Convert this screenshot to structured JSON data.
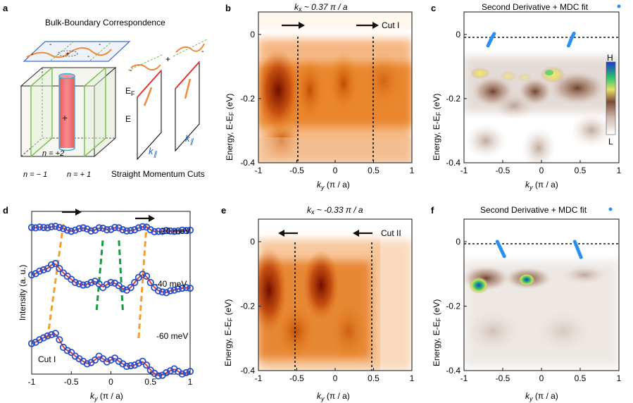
{
  "panels": {
    "a": {
      "label": "a",
      "title": "Bulk-Boundary Correspondence",
      "plus": "+",
      "minus": "-",
      "n_center": "n = +2",
      "n_left": "n = − 1",
      "n_right": "n = + 1",
      "ef": "E",
      "ef_sub": "F",
      "e": "E",
      "k1": "k",
      "k_sub": "∥",
      "cuts_label": "Straight Momentum Cuts"
    },
    "b": {
      "label": "b",
      "title_k": "k",
      "title_sub": "x",
      "title_rest": " ~ 0.37 π / a",
      "cut": "Cut I",
      "arrow_dir": "right",
      "yticks": [
        "0",
        "-0.2",
        "-0.4"
      ],
      "xticks": [
        "-1",
        "-0.5",
        "0",
        "0.5",
        "1"
      ],
      "ylabel": "Energy, E-E",
      "ylabel_sub": "F",
      "ylabel_unit": " (eV)",
      "xlabel_k": "k",
      "xlabel_sub": "y",
      "xlabel_rest": " (π / a)"
    },
    "c": {
      "label": "c",
      "title": "Second Derivative + MDC fit",
      "colorbar_high": "H",
      "colorbar_low": "L",
      "yticks": [
        "0",
        "-0.2",
        "-0.4"
      ],
      "xticks": [
        "-1",
        "-0.5",
        "0",
        "0.5",
        "1"
      ],
      "ylabel": "Energy, E-E",
      "ylabel_sub": "F",
      "ylabel_unit": " (eV)",
      "xlabel_k": "k",
      "xlabel_sub": "y",
      "xlabel_rest": " (π / a)"
    },
    "d": {
      "label": "d",
      "ylabel": "Intensity (a. u.)",
      "curve_labels": [
        "-20 meV",
        "-40 meV",
        "-60 meV"
      ],
      "cut": "Cut I",
      "xticks": [
        "-1",
        "-0.5",
        "0",
        "0.5",
        "1"
      ],
      "xlabel_k": "k",
      "xlabel_sub": "y",
      "xlabel_rest": " (π / a)"
    },
    "e": {
      "label": "e",
      "title_k": "k",
      "title_sub": "x",
      "title_rest": " ~ -0.33 π / a",
      "cut": "Cut II",
      "arrow_dir": "left",
      "yticks": [
        "0",
        "-0.2",
        "-0.4"
      ],
      "xticks": [
        "-1",
        "-0.5",
        "0",
        "0.5",
        "1"
      ],
      "ylabel": "Energy, E-E",
      "ylabel_sub": "F",
      "ylabel_unit": " (eV)",
      "xlabel_k": "k",
      "xlabel_sub": "y",
      "xlabel_rest": " (π / a)"
    },
    "f": {
      "label": "f",
      "title": "Second Derivative + MDC fit",
      "yticks": [
        "0",
        "-0.2",
        "-0.4"
      ],
      "xticks": [
        "-1",
        "-0.5",
        "0",
        "0.5",
        "1"
      ],
      "ylabel": "Energy, E-E",
      "ylabel_sub": "F",
      "ylabel_unit": " (eV)",
      "xlabel_k": "k",
      "xlabel_sub": "y",
      "xlabel_rest": " (π / a)"
    }
  },
  "chart_data": [
    {
      "type": "heatmap",
      "panel": "b",
      "title": "kx ~ 0.37 π/a",
      "xlabel": "ky (π/a)",
      "ylabel": "Energy, E-EF (eV)",
      "xlim": [
        -1,
        1
      ],
      "ylim": [
        -0.4,
        0.07
      ],
      "cut_lines_x": [
        -0.48,
        0.52
      ],
      "intensity_maxima_x": [
        -0.8,
        -0.3,
        0.15
      ]
    },
    {
      "type": "heatmap",
      "panel": "c",
      "title": "Second Derivative + MDC fit",
      "xlim": [
        -1,
        1
      ],
      "ylim": [
        -0.4,
        0.07
      ],
      "fermi_level": 0,
      "mdc_fit_points": [
        {
          "x": [
            -0.69,
            -0.68,
            -0.67,
            -0.66,
            -0.65,
            -0.64,
            -0.63,
            -0.62,
            -0.61
          ],
          "y": [
            -0.035,
            -0.03,
            -0.025,
            -0.02,
            -0.015,
            -0.01,
            -0.006,
            -0.002,
            0.002
          ]
        },
        {
          "x": [
            0.35,
            0.36,
            0.37,
            0.38,
            0.39,
            0.4,
            0.41,
            0.42
          ],
          "y": [
            -0.035,
            -0.029,
            -0.023,
            -0.017,
            -0.011,
            -0.006,
            -0.001,
            0.003
          ]
        }
      ]
    },
    {
      "type": "line",
      "panel": "d",
      "xlabel": "ky (π/a)",
      "ylabel": "Intensity (a. u.)",
      "xlim": [
        -1,
        1
      ],
      "series": [
        {
          "name": "-20 meV",
          "x": [
            -1,
            -0.95,
            -0.9,
            -0.85,
            -0.8,
            -0.75,
            -0.7,
            -0.65,
            -0.6,
            -0.55,
            -0.5,
            -0.45,
            -0.4,
            -0.35,
            -0.3,
            -0.25,
            -0.2,
            -0.15,
            -0.1,
            -0.05,
            0,
            0.05,
            0.1,
            0.15,
            0.2,
            0.25,
            0.3,
            0.35,
            0.4,
            0.45,
            0.5,
            0.55,
            0.6,
            0.65,
            0.7,
            0.75,
            0.8,
            0.85,
            0.9,
            0.95,
            1
          ],
          "values": [
            0.93,
            0.92,
            0.94,
            0.93,
            0.92,
            0.95,
            0.96,
            0.93,
            0.9,
            0.86,
            0.83,
            0.86,
            0.9,
            0.92,
            0.89,
            0.84,
            0.86,
            0.92,
            0.91,
            0.87,
            0.88,
            0.93,
            0.92,
            0.87,
            0.84,
            0.85,
            0.87,
            0.92,
            0.95,
            0.94,
            0.87,
            0.82,
            0.83,
            0.83,
            0.85,
            0.84,
            0.83,
            0.84,
            0.86,
            0.85,
            0.86
          ]
        },
        {
          "name": "-40 meV",
          "x": [
            -1,
            -0.95,
            -0.9,
            -0.85,
            -0.8,
            -0.75,
            -0.7,
            -0.65,
            -0.6,
            -0.55,
            -0.5,
            -0.45,
            -0.4,
            -0.35,
            -0.3,
            -0.25,
            -0.2,
            -0.15,
            -0.1,
            -0.05,
            0,
            0.05,
            0.1,
            0.15,
            0.2,
            0.25,
            0.3,
            0.35,
            0.4,
            0.45,
            0.5,
            0.55,
            0.6,
            0.65,
            0.7,
            0.75,
            0.8,
            0.85,
            0.9,
            0.95,
            1
          ],
          "values": [
            0.72,
            0.74,
            0.78,
            0.8,
            0.82,
            0.88,
            0.9,
            0.82,
            0.75,
            0.7,
            0.65,
            0.6,
            0.58,
            0.56,
            0.57,
            0.6,
            0.62,
            0.58,
            0.52,
            0.57,
            0.6,
            0.59,
            0.55,
            0.5,
            0.48,
            0.52,
            0.6,
            0.68,
            0.73,
            0.7,
            0.6,
            0.52,
            0.47,
            0.45,
            0.44,
            0.47,
            0.48,
            0.5,
            0.51,
            0.52,
            0.51
          ]
        },
        {
          "name": "-60 meV",
          "x": [
            -1,
            -0.95,
            -0.9,
            -0.85,
            -0.8,
            -0.75,
            -0.7,
            -0.65,
            -0.6,
            -0.55,
            -0.5,
            -0.45,
            -0.4,
            -0.35,
            -0.3,
            -0.25,
            -0.2,
            -0.15,
            -0.1,
            -0.05,
            0,
            0.05,
            0.1,
            0.15,
            0.2,
            0.25,
            0.3,
            0.35,
            0.4,
            0.45,
            0.5,
            0.55,
            0.6,
            0.65,
            0.7,
            0.75,
            0.8,
            0.85,
            0.9,
            0.95,
            1
          ],
          "values": [
            0.56,
            0.58,
            0.62,
            0.65,
            0.68,
            0.7,
            0.72,
            0.62,
            0.5,
            0.45,
            0.42,
            0.36,
            0.32,
            0.28,
            0.24,
            0.26,
            0.3,
            0.36,
            0.32,
            0.27,
            0.3,
            0.33,
            0.28,
            0.24,
            0.2,
            0.21,
            0.22,
            0.25,
            0.28,
            0.22,
            0.14,
            0.09,
            0.05,
            0.06,
            0.1,
            0.13,
            0.16,
            0.12,
            0.08,
            0.1,
            0.12
          ]
        }
      ],
      "dashed_guides": {
        "orange": [
          [
            -0.8,
            -0.6
          ],
          [
            0.35,
            0.45
          ]
        ],
        "green": [
          [
            -0.18,
            -0.1
          ],
          [
            0.15,
            0.1
          ]
        ]
      }
    },
    {
      "type": "heatmap",
      "panel": "e",
      "title": "kx ~ -0.33 π/a",
      "xlabel": "ky (π/a)",
      "ylabel": "Energy, E-EF (eV)",
      "xlim": [
        -1,
        1
      ],
      "ylim": [
        -0.4,
        0.07
      ],
      "cut_lines_x": [
        -0.48,
        0.52
      ],
      "intensity_maxima_x": [
        -0.9,
        -0.2
      ]
    },
    {
      "type": "heatmap",
      "panel": "f",
      "title": "Second Derivative + MDC fit",
      "xlim": [
        -1,
        1
      ],
      "ylim": [
        -0.4,
        0.07
      ],
      "fermi_level": 0,
      "mdc_fit_points": [
        {
          "x": [
            -0.57,
            -0.56,
            -0.55,
            -0.54,
            -0.53,
            -0.52,
            -0.51,
            -0.5,
            -0.49,
            -0.48
          ],
          "y": [
            0.0,
            -0.005,
            -0.01,
            -0.015,
            -0.02,
            -0.025,
            -0.03,
            -0.035,
            -0.04,
            -0.045
          ]
        },
        {
          "x": [
            0.43,
            0.44,
            0.45,
            0.46,
            0.47,
            0.48,
            0.49,
            0.5,
            0.51
          ],
          "y": [
            0.0,
            -0.006,
            -0.012,
            -0.018,
            -0.024,
            -0.03,
            -0.036,
            -0.042,
            -0.048
          ]
        }
      ]
    }
  ],
  "colors": {
    "orange_line": "#ee8a3c",
    "green_dash": "#159a43",
    "orange_dash": "#f39e31",
    "fit_line": "#e4332c",
    "circle": "#2c4fc8",
    "mdc_dot": "#2a8ff0",
    "red_cyl": "#f16a6c",
    "cyl_edge": "#40aee6",
    "plane_edge": "#3f6ec8",
    "green_line": "#77bb4a"
  }
}
